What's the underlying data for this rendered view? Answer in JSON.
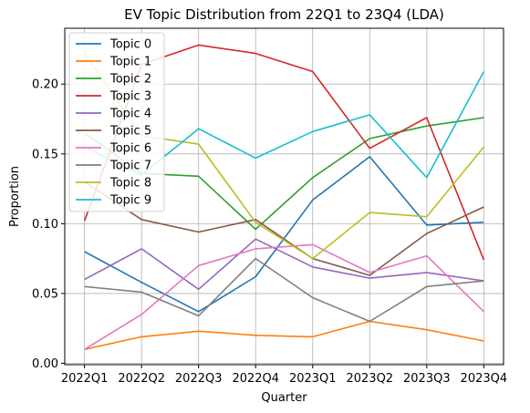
{
  "chart_data": {
    "type": "line",
    "title": "EV Topic Distribution from 22Q1 to 23Q4 (LDA)",
    "xlabel": "Quarter",
    "ylabel": "Proportion",
    "categories": [
      "2022Q1",
      "2022Q2",
      "2022Q3",
      "2022Q4",
      "2023Q1",
      "2023Q2",
      "2023Q3",
      "2023Q4"
    ],
    "ylim": [
      -0.001,
      0.24
    ],
    "yticks": [
      0.0,
      0.05,
      0.1,
      0.15,
      0.2
    ],
    "ytick_labels": [
      "0.00",
      "0.05",
      "0.10",
      "0.15",
      "0.20"
    ],
    "grid": true,
    "legend_position": "upper-left",
    "series": [
      {
        "name": "Topic 0",
        "color": "#1f77b4",
        "values": [
          0.08,
          0.058,
          0.037,
          0.062,
          0.117,
          0.148,
          0.099,
          0.101
        ]
      },
      {
        "name": "Topic 1",
        "color": "#ff7f0e",
        "values": [
          0.01,
          0.019,
          0.023,
          0.02,
          0.019,
          0.03,
          0.024,
          0.016
        ]
      },
      {
        "name": "Topic 2",
        "color": "#2ca02c",
        "values": [
          0.165,
          0.136,
          0.134,
          0.096,
          0.133,
          0.161,
          0.17,
          0.176
        ]
      },
      {
        "name": "Topic 3",
        "color": "#d62728",
        "values": [
          0.102,
          0.214,
          0.228,
          0.222,
          0.209,
          0.154,
          0.176,
          0.074
        ]
      },
      {
        "name": "Topic 4",
        "color": "#9467bd",
        "values": [
          0.06,
          0.082,
          0.053,
          0.089,
          0.069,
          0.061,
          0.065,
          0.059
        ]
      },
      {
        "name": "Topic 5",
        "color": "#8c564b",
        "values": [
          0.13,
          0.103,
          0.094,
          0.103,
          0.075,
          0.063,
          0.093,
          0.112
        ]
      },
      {
        "name": "Topic 6",
        "color": "#e377c2",
        "values": [
          0.01,
          0.035,
          0.07,
          0.082,
          0.085,
          0.065,
          0.077,
          0.037
        ]
      },
      {
        "name": "Topic 7",
        "color": "#7f7f7f",
        "values": [
          0.055,
          0.051,
          0.034,
          0.075,
          0.047,
          0.03,
          0.055,
          0.059
        ]
      },
      {
        "name": "Topic 8",
        "color": "#bcbd22",
        "values": [
          0.222,
          0.163,
          0.157,
          0.101,
          0.075,
          0.108,
          0.105,
          0.155
        ]
      },
      {
        "name": "Topic 9",
        "color": "#17becf",
        "values": [
          0.155,
          0.135,
          0.168,
          0.147,
          0.166,
          0.178,
          0.133,
          0.209
        ]
      }
    ]
  }
}
